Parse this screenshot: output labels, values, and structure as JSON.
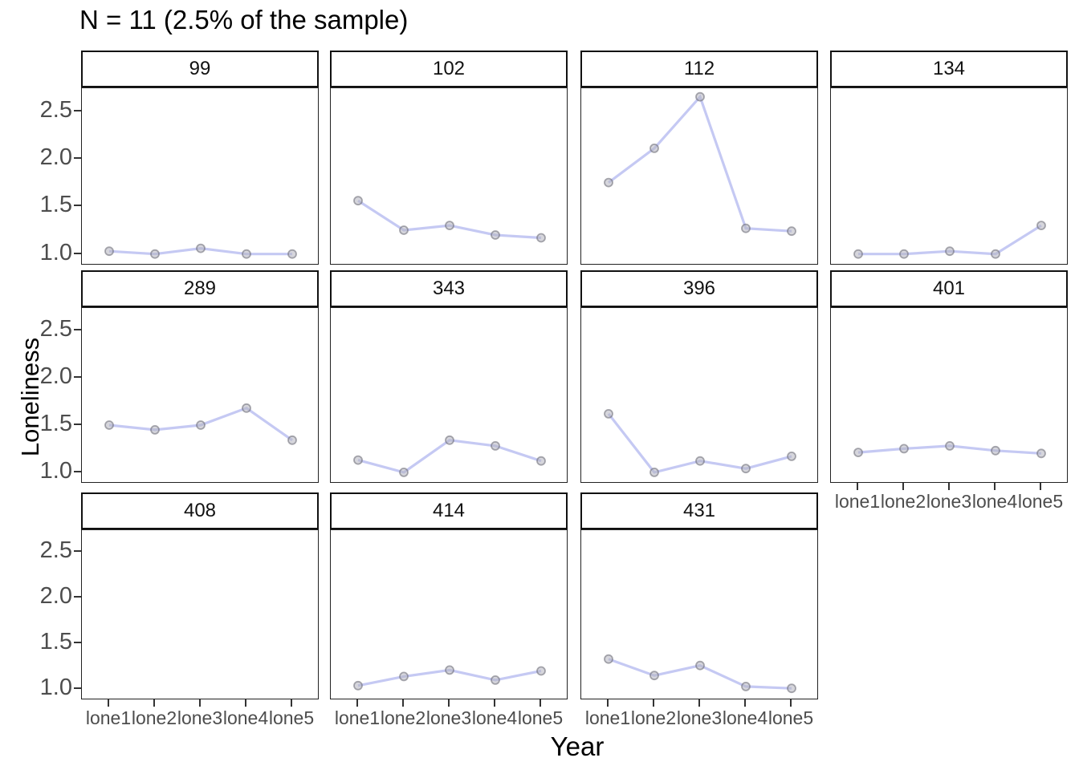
{
  "figure": {
    "background": "#ffffff"
  },
  "chart_data": {
    "type": "line",
    "title": "N = 11 (2.5% of the sample)",
    "xlabel": "Year",
    "ylabel": "Loneliness",
    "grid": false,
    "legend": "none",
    "facet_layout": {
      "columns": 4,
      "rows": 3,
      "style": "ggplot-facet-wrap"
    },
    "categories": [
      "lone1",
      "lone2",
      "lone3",
      "lone4",
      "lone5"
    ],
    "y_tick_labels": [
      "2.5",
      "2.0",
      "1.5",
      "1.0"
    ],
    "y_tick_values": [
      2.5,
      2.0,
      1.5,
      1.0
    ],
    "ylim": [
      0.88,
      2.74
    ],
    "series": [
      {
        "facet": "99",
        "values": [
          1.03,
          1.0,
          1.06,
          1.0,
          1.0
        ]
      },
      {
        "facet": "102",
        "values": [
          1.56,
          1.25,
          1.3,
          1.2,
          1.17
        ]
      },
      {
        "facet": "112",
        "values": [
          1.75,
          2.11,
          2.65,
          1.27,
          1.24
        ]
      },
      {
        "facet": "134",
        "values": [
          1.0,
          1.0,
          1.03,
          1.0,
          1.3
        ]
      },
      {
        "facet": "289",
        "values": [
          1.5,
          1.45,
          1.5,
          1.68,
          1.34
        ]
      },
      {
        "facet": "343",
        "values": [
          1.13,
          1.0,
          1.34,
          1.28,
          1.12
        ]
      },
      {
        "facet": "396",
        "values": [
          1.62,
          1.0,
          1.12,
          1.04,
          1.17
        ]
      },
      {
        "facet": "401",
        "values": [
          1.21,
          1.25,
          1.28,
          1.23,
          1.2
        ]
      },
      {
        "facet": "408",
        "values": [
          null,
          null,
          null,
          null,
          null
        ]
      },
      {
        "facet": "414",
        "values": [
          1.04,
          1.14,
          1.21,
          1.1,
          1.2
        ]
      },
      {
        "facet": "431",
        "values": [
          1.33,
          1.15,
          1.26,
          1.03,
          1.01
        ]
      }
    ],
    "colors": {
      "line": "#bfc3f2",
      "point_fill": "#b5b5bf",
      "point_stroke": "#70707a",
      "panel_border": "#222222",
      "axis_text": "#4d4d4d",
      "strip_text": "#111111",
      "background": "#ffffff"
    }
  }
}
